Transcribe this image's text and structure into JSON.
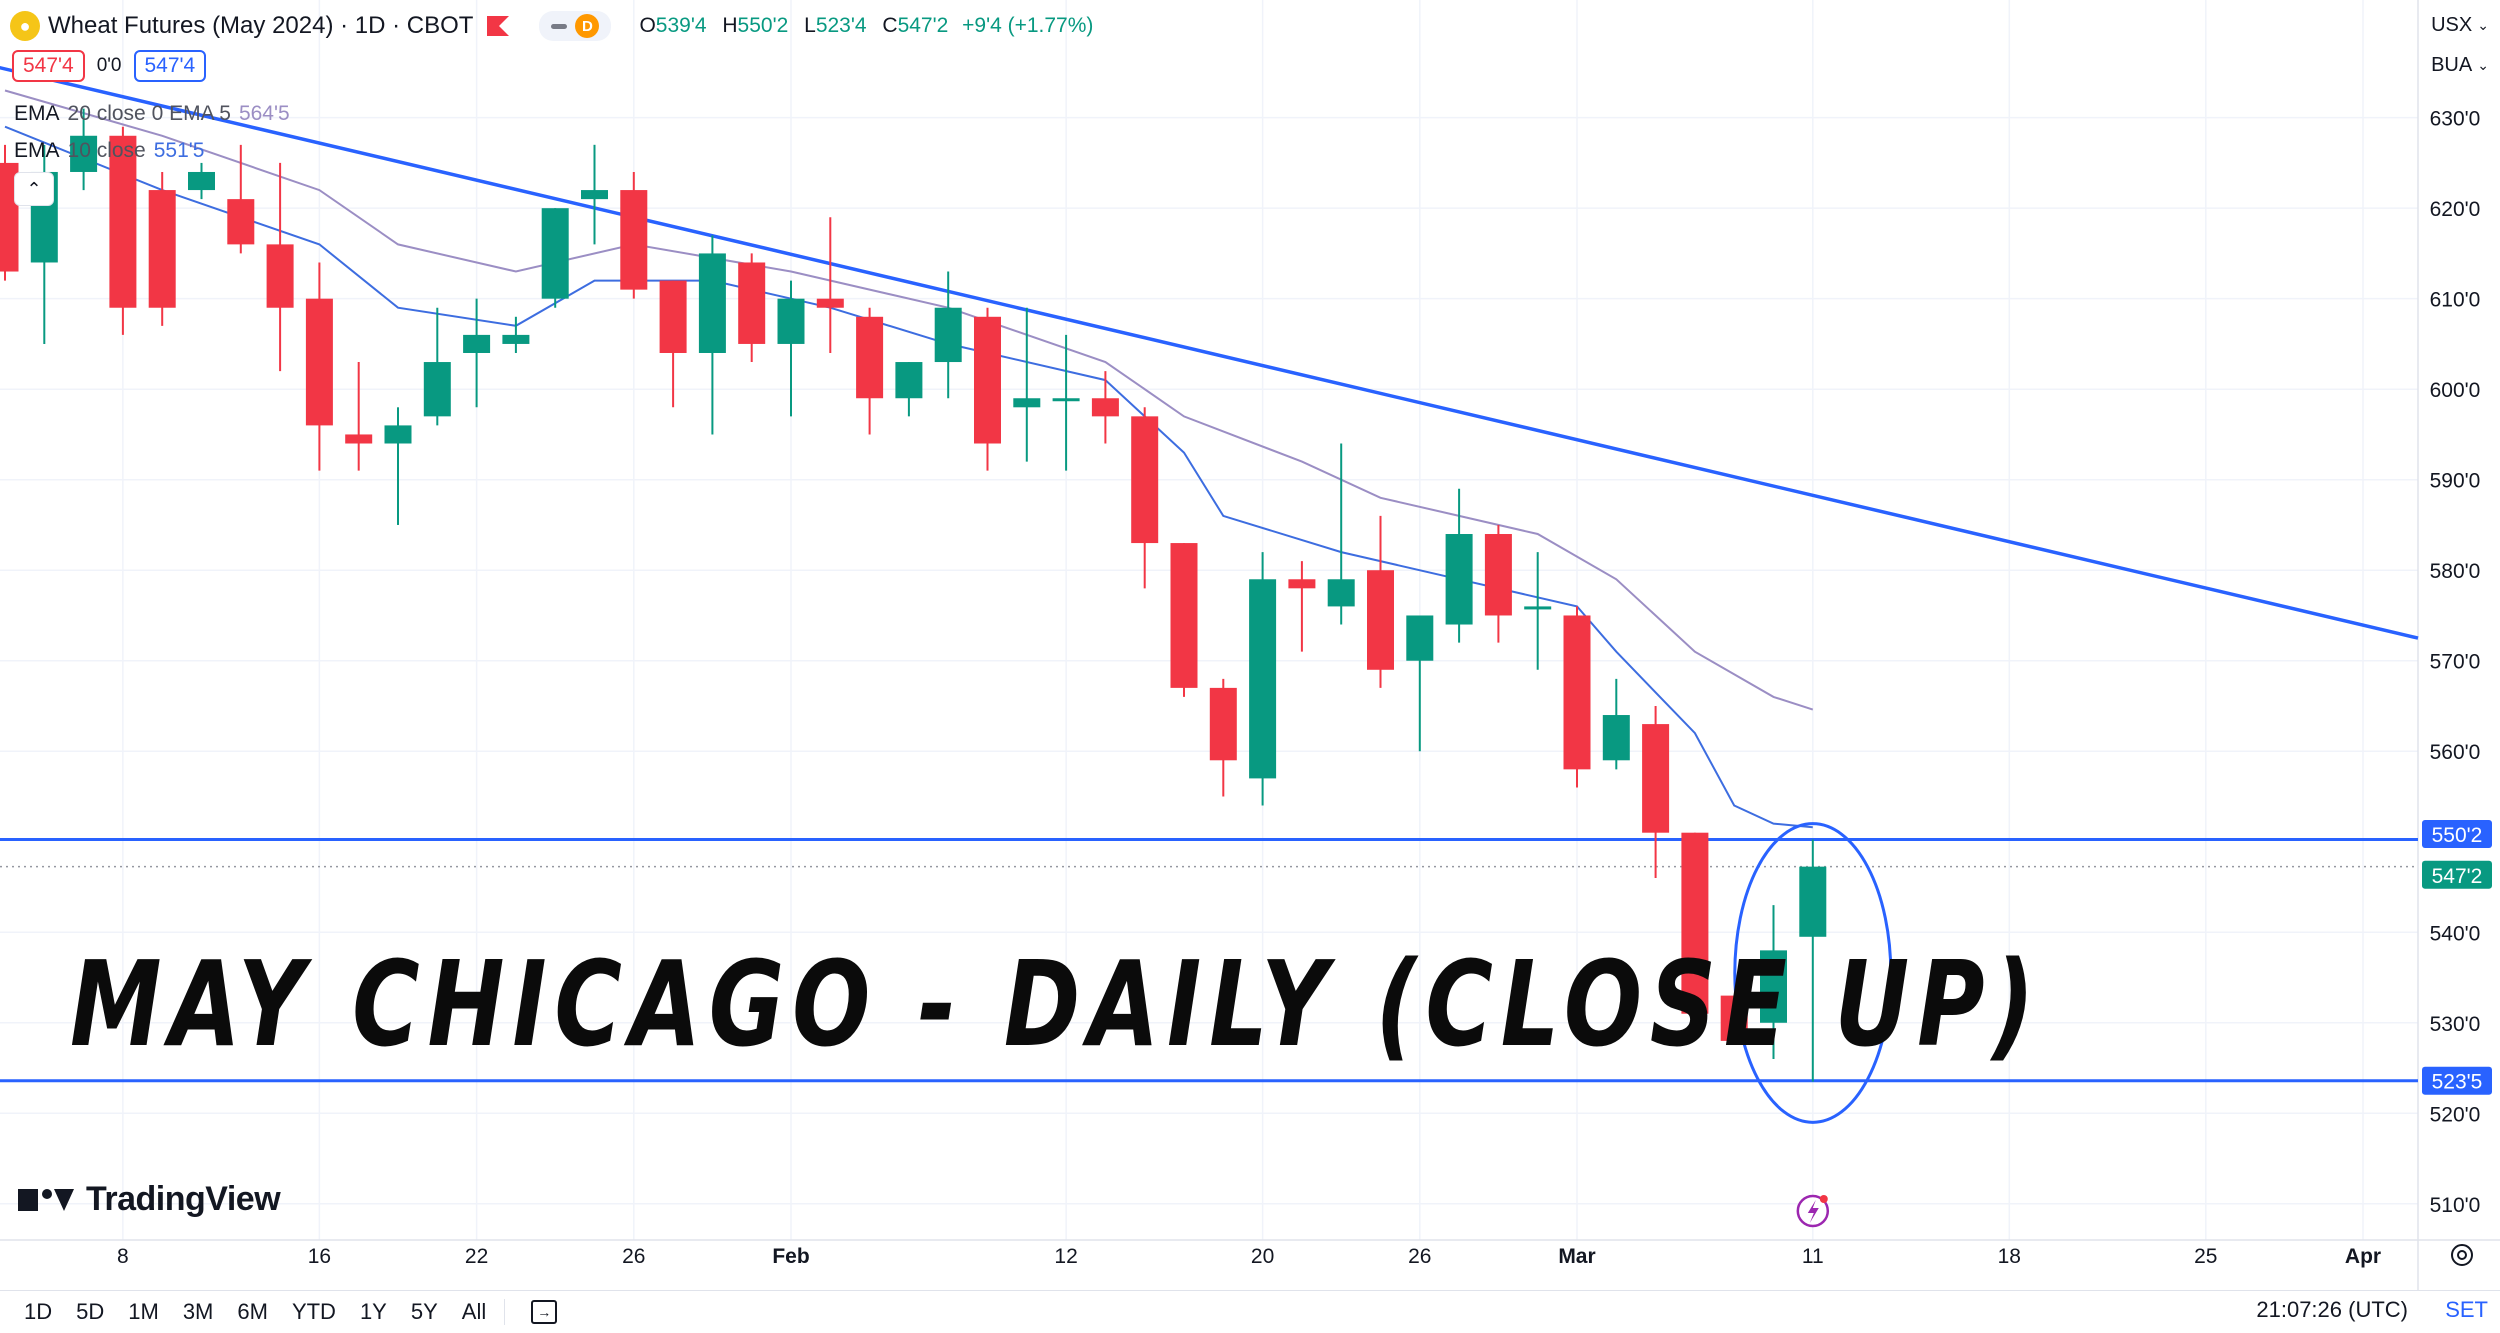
{
  "header": {
    "symbol_title": "Wheat Futures (May 2024) · 1D · CBOT",
    "delayed_badge": "D",
    "ohlc": {
      "o_label": "O",
      "o_value": "539'4",
      "h_label": "H",
      "h_value": "550'2",
      "l_label": "L",
      "l_value": "523'4",
      "c_label": "C",
      "c_value": "547'2",
      "change": "+9'4 (+1.77%)"
    },
    "sell_price": "547'4",
    "spread": "0'0",
    "buy_price": "547'4"
  },
  "indicators": [
    {
      "name": "EMA",
      "params": "20 close 0 EMA 5",
      "value": "564'5",
      "color": "#9b8ec4"
    },
    {
      "name": "EMA",
      "params": "10 close",
      "value": "551'5",
      "color": "#3d6de0"
    }
  ],
  "right_menus": {
    "currency": "USX",
    "unit": "BUA"
  },
  "overlay_title": "MAY CHICAGO - DAILY (CLOSE UP)",
  "price_labels": {
    "resistance": "550'2",
    "last": "547'2",
    "support": "523'5"
  },
  "bottom_bar": {
    "ranges": [
      "1D",
      "5D",
      "1M",
      "3M",
      "6M",
      "YTD",
      "1Y",
      "5Y",
      "All"
    ],
    "time": "21:07:26 (UTC)",
    "set": "SET"
  },
  "logo_text": "TradingView",
  "colors": {
    "up": "#089981",
    "down": "#f23645",
    "trend": "#2962ff",
    "ema_fast": "#3d6de0",
    "ema_slow": "#9b8ec4"
  },
  "chart_data": {
    "type": "candlestick",
    "title": "",
    "ylim": [
      506,
      643
    ],
    "y_ticks": [
      {
        "v": 510,
        "label": "510'0"
      },
      {
        "v": 520,
        "label": "520'0"
      },
      {
        "v": 530,
        "label": "530'0"
      },
      {
        "v": 540,
        "label": "540'0"
      },
      {
        "v": 560,
        "label": "560'0"
      },
      {
        "v": 570,
        "label": "570'0"
      },
      {
        "v": 580,
        "label": "580'0"
      },
      {
        "v": 590,
        "label": "590'0"
      },
      {
        "v": 600,
        "label": "600'0"
      },
      {
        "v": 610,
        "label": "610'0"
      },
      {
        "v": 620,
        "label": "620'0"
      },
      {
        "v": 630,
        "label": "630'0"
      }
    ],
    "x_ticks": [
      {
        "i": 3,
        "label": "8"
      },
      {
        "i": 8,
        "label": "16"
      },
      {
        "i": 12,
        "label": "22"
      },
      {
        "i": 16,
        "label": "26"
      },
      {
        "i": 20,
        "label": "Feb"
      },
      {
        "i": 27,
        "label": "12"
      },
      {
        "i": 32,
        "label": "20"
      },
      {
        "i": 36,
        "label": "26"
      },
      {
        "i": 40,
        "label": "Mar"
      },
      {
        "i": 46,
        "label": "11"
      },
      {
        "i": 51,
        "label": "18"
      },
      {
        "i": 56,
        "label": "25"
      },
      {
        "i": 60,
        "label": "Apr"
      }
    ],
    "candles": [
      {
        "o": 625,
        "h": 627,
        "l": 612,
        "c": 613
      },
      {
        "o": 614,
        "h": 627,
        "l": 605,
        "c": 624
      },
      {
        "o": 624,
        "h": 631,
        "l": 622,
        "c": 628
      },
      {
        "o": 628,
        "h": 629,
        "l": 606,
        "c": 609
      },
      {
        "o": 622,
        "h": 624,
        "l": 607,
        "c": 609
      },
      {
        "o": 622,
        "h": 625,
        "l": 621,
        "c": 624
      },
      {
        "o": 621,
        "h": 627,
        "l": 615,
        "c": 616
      },
      {
        "o": 616,
        "h": 625,
        "l": 602,
        "c": 609
      },
      {
        "o": 610,
        "h": 614,
        "l": 591,
        "c": 596
      },
      {
        "o": 595,
        "h": 603,
        "l": 591,
        "c": 594
      },
      {
        "o": 594,
        "h": 598,
        "l": 585,
        "c": 596
      },
      {
        "o": 597,
        "h": 609,
        "l": 596,
        "c": 603
      },
      {
        "o": 604,
        "h": 610,
        "l": 598,
        "c": 606
      },
      {
        "o": 605,
        "h": 608,
        "l": 604,
        "c": 606
      },
      {
        "o": 610,
        "h": 620,
        "l": 609,
        "c": 620
      },
      {
        "o": 621,
        "h": 627,
        "l": 616,
        "c": 622
      },
      {
        "o": 622,
        "h": 624,
        "l": 610,
        "c": 611
      },
      {
        "o": 612,
        "h": 612,
        "l": 598,
        "c": 604
      },
      {
        "o": 604,
        "h": 617,
        "l": 595,
        "c": 615
      },
      {
        "o": 614,
        "h": 615,
        "l": 603,
        "c": 605
      },
      {
        "o": 605,
        "h": 612,
        "l": 597,
        "c": 610
      },
      {
        "o": 610,
        "h": 619,
        "l": 604,
        "c": 609
      },
      {
        "o": 608,
        "h": 609,
        "l": 595,
        "c": 599
      },
      {
        "o": 599,
        "h": 603,
        "l": 597,
        "c": 603
      },
      {
        "o": 603,
        "h": 613,
        "l": 599,
        "c": 609
      },
      {
        "o": 608,
        "h": 609,
        "l": 591,
        "c": 594
      },
      {
        "o": 598,
        "h": 609,
        "l": 592,
        "c": 599
      },
      {
        "o": 599,
        "h": 606,
        "l": 591,
        "c": 599
      },
      {
        "o": 599,
        "h": 602,
        "l": 594,
        "c": 597
      },
      {
        "o": 597,
        "h": 598,
        "l": 578,
        "c": 583
      },
      {
        "o": 583,
        "h": 583,
        "l": 566,
        "c": 567
      },
      {
        "o": 567,
        "h": 568,
        "l": 555,
        "c": 559
      },
      {
        "o": 557,
        "h": 582,
        "l": 554,
        "c": 579
      },
      {
        "o": 579,
        "h": 581,
        "l": 571,
        "c": 578
      },
      {
        "o": 576,
        "h": 594,
        "l": 574,
        "c": 579
      },
      {
        "o": 580,
        "h": 586,
        "l": 567,
        "c": 569
      },
      {
        "o": 570,
        "h": 575,
        "l": 560,
        "c": 575
      },
      {
        "o": 574,
        "h": 589,
        "l": 572,
        "c": 584
      },
      {
        "o": 584,
        "h": 585,
        "l": 572,
        "c": 575
      },
      {
        "o": 576,
        "h": 582,
        "l": 569,
        "c": 576
      },
      {
        "o": 575,
        "h": 576,
        "l": 556,
        "c": 558
      },
      {
        "o": 559,
        "h": 568,
        "l": 558,
        "c": 564
      },
      {
        "o": 563,
        "h": 565,
        "l": 546,
        "c": 551
      },
      {
        "o": 551,
        "h": 551,
        "l": 529,
        "c": 531
      },
      {
        "o": 533,
        "h": 533,
        "l": 528,
        "c": 528
      },
      {
        "o": 530,
        "h": 543,
        "l": 526,
        "c": 538
      },
      {
        "o": 539.5,
        "h": 550.25,
        "l": 523.5,
        "c": 547.25
      }
    ],
    "ema_fast": [
      {
        "i": 0,
        "v": 629
      },
      {
        "i": 4,
        "v": 622
      },
      {
        "i": 8,
        "v": 616
      },
      {
        "i": 10,
        "v": 609
      },
      {
        "i": 13,
        "v": 607
      },
      {
        "i": 15,
        "v": 612
      },
      {
        "i": 18,
        "v": 612
      },
      {
        "i": 21,
        "v": 609
      },
      {
        "i": 24,
        "v": 605
      },
      {
        "i": 28,
        "v": 601
      },
      {
        "i": 30,
        "v": 593
      },
      {
        "i": 31,
        "v": 586
      },
      {
        "i": 34,
        "v": 582
      },
      {
        "i": 37,
        "v": 579
      },
      {
        "i": 40,
        "v": 576
      },
      {
        "i": 41,
        "v": 571
      },
      {
        "i": 43,
        "v": 562
      },
      {
        "i": 44,
        "v": 554
      },
      {
        "i": 45,
        "v": 552
      },
      {
        "i": 46,
        "v": 551.6
      }
    ],
    "ema_slow": [
      {
        "i": 0,
        "v": 633
      },
      {
        "i": 4,
        "v": 628
      },
      {
        "i": 8,
        "v": 622
      },
      {
        "i": 10,
        "v": 616
      },
      {
        "i": 13,
        "v": 613
      },
      {
        "i": 16,
        "v": 616
      },
      {
        "i": 20,
        "v": 613
      },
      {
        "i": 24,
        "v": 609
      },
      {
        "i": 28,
        "v": 603
      },
      {
        "i": 30,
        "v": 597
      },
      {
        "i": 33,
        "v": 592
      },
      {
        "i": 35,
        "v": 588
      },
      {
        "i": 37,
        "v": 586
      },
      {
        "i": 39,
        "v": 584
      },
      {
        "i": 41,
        "v": 579
      },
      {
        "i": 43,
        "v": 571
      },
      {
        "i": 45,
        "v": 566
      },
      {
        "i": 46,
        "v": 564.6
      }
    ],
    "trend_line": {
      "from": {
        "i": -0.6,
        "v": 636
      },
      "to": {
        "i": 61.4,
        "v": 572.5
      }
    },
    "horizontal_lines": [
      {
        "v": 550.25,
        "style": "solid"
      },
      {
        "v": 547.25,
        "style": "dotted"
      },
      {
        "v": 523.6,
        "style": "solid"
      }
    ],
    "highlight_ellipse": {
      "i": 46,
      "v_top": 552,
      "v_bottom": 519
    }
  }
}
